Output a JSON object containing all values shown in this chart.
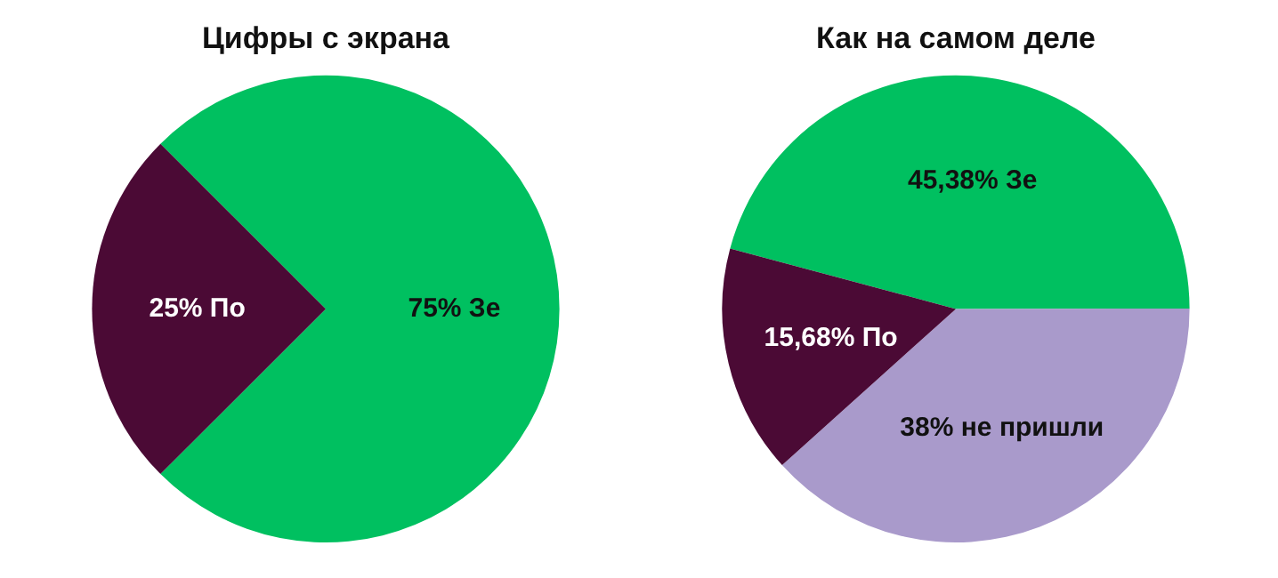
{
  "chart_data": [
    {
      "type": "pie",
      "title": "Цифры с экрана",
      "categories": [
        "Зе",
        "По"
      ],
      "values": [
        75,
        25
      ],
      "colors": [
        "#00c060",
        "#4b0a35"
      ],
      "value_labels": [
        "75%",
        "25%"
      ]
    },
    {
      "type": "pie",
      "title": "Как на самом деле",
      "categories": [
        "Зе",
        "не пришли",
        "По"
      ],
      "values": [
        45.38,
        38,
        15.68
      ],
      "colors": [
        "#00c060",
        "#a99acb",
        "#4b0a35"
      ],
      "value_labels": [
        "45,38%",
        "38%",
        "15,68%"
      ]
    }
  ]
}
